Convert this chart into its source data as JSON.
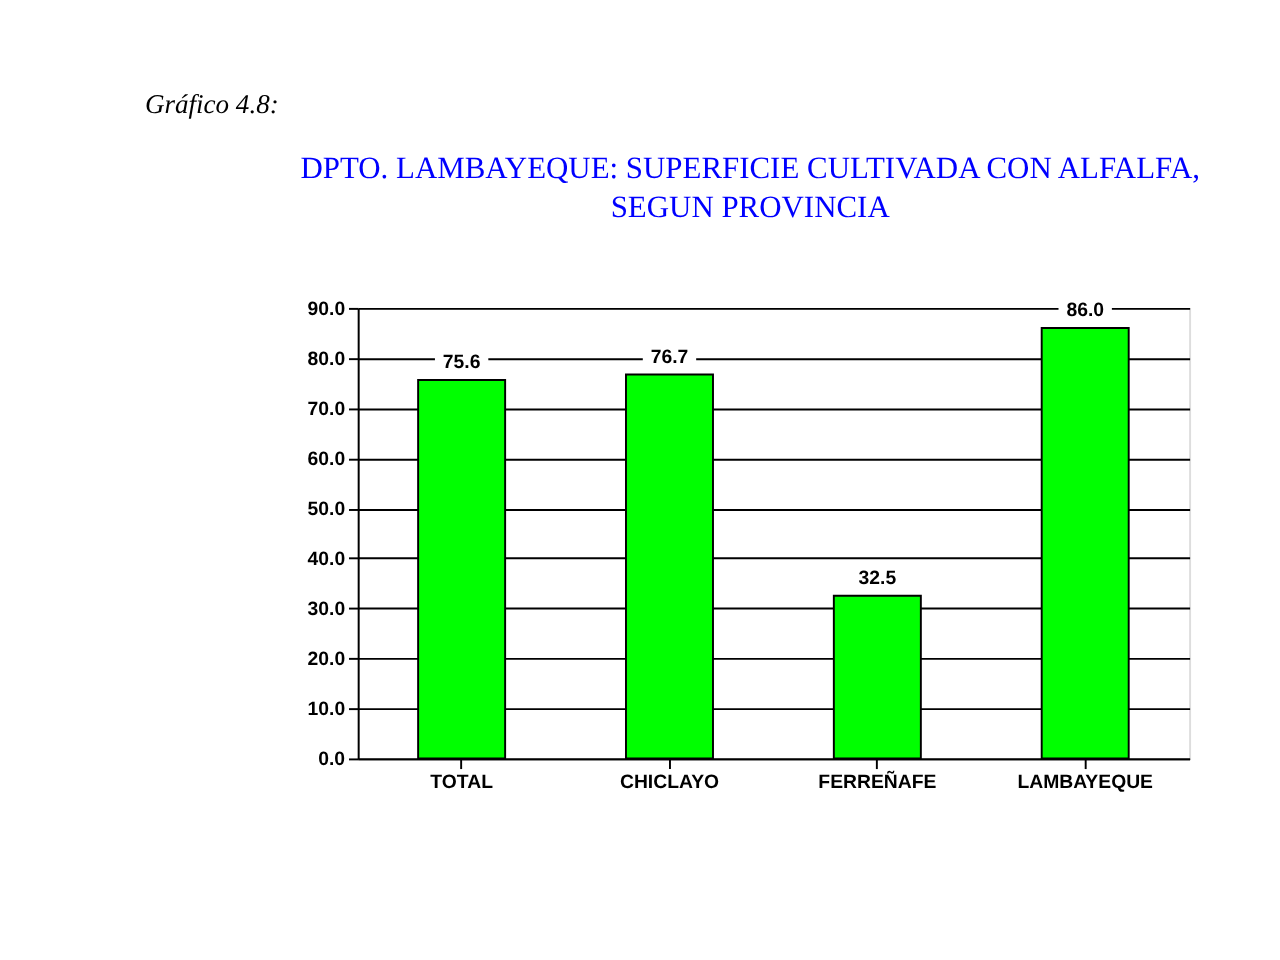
{
  "chart_data": {
    "type": "bar",
    "title": [
      "DPTO. LAMBAYEQUE: SUPERFICIE CULTIVADA CON ALFALFA,",
      "SEGUN PROVINCIA"
    ],
    "annotations": [
      "Gráfico 4.8:"
    ],
    "categories": [
      "TOTAL",
      "CHICLAYO",
      "FERREÑAFE",
      "LAMBAYEQUE"
    ],
    "values": [
      75.6,
      76.7,
      32.5,
      86.0
    ],
    "value_labels": [
      "75.6",
      "76.7",
      "32.5",
      "86.0"
    ],
    "color": "#00ff00",
    "ylim": [
      0,
      90
    ],
    "yticks": [
      {
        "value": 0,
        "label": "0.0"
      },
      {
        "value": 10,
        "label": "10.0"
      },
      {
        "value": 20,
        "label": "20.0"
      },
      {
        "value": 30,
        "label": "30.0"
      },
      {
        "value": 40,
        "label": "40.0"
      },
      {
        "value": 50,
        "label": "50.0"
      },
      {
        "value": 60,
        "label": "60.0"
      },
      {
        "value": 70,
        "label": "70.0"
      },
      {
        "value": 80,
        "label": "80.0"
      },
      {
        "value": 90,
        "label": "90.0"
      }
    ],
    "grid": "y"
  }
}
